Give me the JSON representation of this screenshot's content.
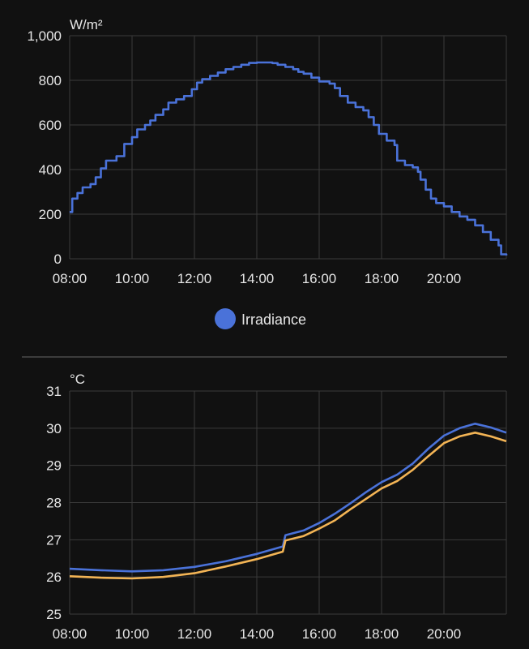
{
  "colors": {
    "background": "#111111",
    "grid": "#3a3a3a",
    "text": "#e6e6e6",
    "irradiance": "#4a72d9",
    "temp_blue": "#4a72d9",
    "temp_orange": "#f3b455"
  },
  "chart_data": [
    {
      "type": "line",
      "step": true,
      "unit": "W/m²",
      "xlim": [
        "08:00",
        "22:00"
      ],
      "ylim": [
        0,
        1000
      ],
      "xticks": [
        "08:00",
        "10:00",
        "12:00",
        "14:00",
        "16:00",
        "18:00",
        "20:00"
      ],
      "yticks": [
        "0",
        "200",
        "400",
        "600",
        "800",
        "1,000"
      ],
      "grid": true,
      "legend_position": "bottom",
      "series": [
        {
          "name": "Irradiance",
          "color": "#4a72d9",
          "points": [
            [
              "08:00",
              210
            ],
            [
              "08:05",
              270
            ],
            [
              "08:15",
              295
            ],
            [
              "08:25",
              320
            ],
            [
              "08:40",
              335
            ],
            [
              "08:50",
              365
            ],
            [
              "09:00",
              405
            ],
            [
              "09:10",
              440
            ],
            [
              "09:30",
              460
            ],
            [
              "09:45",
              515
            ],
            [
              "10:00",
              545
            ],
            [
              "10:10",
              580
            ],
            [
              "10:25",
              600
            ],
            [
              "10:35",
              620
            ],
            [
              "10:45",
              645
            ],
            [
              "11:00",
              670
            ],
            [
              "11:10",
              700
            ],
            [
              "11:25",
              715
            ],
            [
              "11:40",
              730
            ],
            [
              "11:55",
              760
            ],
            [
              "12:05",
              790
            ],
            [
              "12:15",
              805
            ],
            [
              "12:30",
              820
            ],
            [
              "12:45",
              835
            ],
            [
              "13:00",
              850
            ],
            [
              "13:15",
              860
            ],
            [
              "13:30",
              870
            ],
            [
              "13:45",
              878
            ],
            [
              "14:00",
              880
            ],
            [
              "14:15",
              880
            ],
            [
              "14:30",
              877
            ],
            [
              "14:40",
              870
            ],
            [
              "14:55",
              860
            ],
            [
              "15:10",
              850
            ],
            [
              "15:20",
              838
            ],
            [
              "15:30",
              830
            ],
            [
              "15:45",
              812
            ],
            [
              "16:00",
              795
            ],
            [
              "16:20",
              785
            ],
            [
              "16:30",
              765
            ],
            [
              "16:40",
              730
            ],
            [
              "16:55",
              700
            ],
            [
              "17:10",
              680
            ],
            [
              "17:25",
              665
            ],
            [
              "17:35",
              635
            ],
            [
              "17:45",
              600
            ],
            [
              "17:55",
              560
            ],
            [
              "18:10",
              530
            ],
            [
              "18:25",
              510
            ],
            [
              "18:30",
              440
            ],
            [
              "18:45",
              420
            ],
            [
              "19:00",
              410
            ],
            [
              "19:10",
              390
            ],
            [
              "19:15",
              355
            ],
            [
              "19:25",
              310
            ],
            [
              "19:35",
              270
            ],
            [
              "19:45",
              250
            ],
            [
              "20:00",
              235
            ],
            [
              "20:15",
              210
            ],
            [
              "20:30",
              190
            ],
            [
              "20:45",
              175
            ],
            [
              "21:00",
              150
            ],
            [
              "21:15",
              120
            ],
            [
              "21:30",
              85
            ],
            [
              "21:45",
              60
            ],
            [
              "21:50",
              20
            ],
            [
              "22:00",
              15
            ]
          ]
        }
      ]
    },
    {
      "type": "line",
      "unit": "°C",
      "xlim": [
        "08:00",
        "22:00"
      ],
      "ylim": [
        25,
        31
      ],
      "xticks": [
        "08:00",
        "10:00",
        "12:00",
        "14:00",
        "16:00",
        "18:00",
        "20:00"
      ],
      "yticks": [
        "25",
        "26",
        "27",
        "28",
        "29",
        "30",
        "31"
      ],
      "grid": true,
      "series": [
        {
          "color": "#4a72d9",
          "points": [
            [
              "08:00",
              26.22
            ],
            [
              "09:00",
              26.18
            ],
            [
              "10:00",
              26.15
            ],
            [
              "11:00",
              26.18
            ],
            [
              "12:00",
              26.27
            ],
            [
              "13:00",
              26.42
            ],
            [
              "14:00",
              26.62
            ],
            [
              "14:50",
              26.82
            ],
            [
              "14:55",
              27.12
            ],
            [
              "15:30",
              27.25
            ],
            [
              "16:00",
              27.45
            ],
            [
              "16:30",
              27.7
            ],
            [
              "17:00",
              27.98
            ],
            [
              "17:30",
              28.28
            ],
            [
              "18:00",
              28.55
            ],
            [
              "18:30",
              28.75
            ],
            [
              "19:00",
              29.05
            ],
            [
              "19:30",
              29.45
            ],
            [
              "20:00",
              29.8
            ],
            [
              "20:30",
              30.0
            ],
            [
              "21:00",
              30.12
            ],
            [
              "21:30",
              30.02
            ],
            [
              "22:00",
              29.88
            ]
          ]
        },
        {
          "color": "#f3b455",
          "points": [
            [
              "08:00",
              26.02
            ],
            [
              "09:00",
              25.98
            ],
            [
              "10:00",
              25.96
            ],
            [
              "11:00",
              26.0
            ],
            [
              "12:00",
              26.1
            ],
            [
              "13:00",
              26.28
            ],
            [
              "14:00",
              26.48
            ],
            [
              "14:50",
              26.68
            ],
            [
              "14:55",
              26.98
            ],
            [
              "15:30",
              27.1
            ],
            [
              "16:00",
              27.3
            ],
            [
              "16:30",
              27.52
            ],
            [
              "17:00",
              27.82
            ],
            [
              "17:30",
              28.1
            ],
            [
              "18:00",
              28.38
            ],
            [
              "18:30",
              28.58
            ],
            [
              "19:00",
              28.88
            ],
            [
              "19:30",
              29.25
            ],
            [
              "20:00",
              29.6
            ],
            [
              "20:30",
              29.78
            ],
            [
              "21:00",
              29.88
            ],
            [
              "21:30",
              29.78
            ],
            [
              "22:00",
              29.65
            ]
          ]
        }
      ]
    }
  ]
}
